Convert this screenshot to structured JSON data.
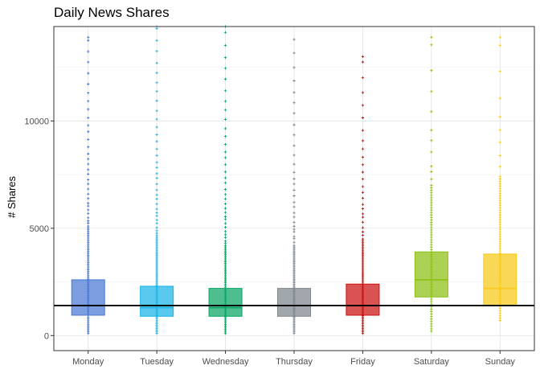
{
  "chart_data": {
    "type": "box",
    "title": "Daily News Shares",
    "xlabel": "",
    "ylabel": "# Shares",
    "ylim": [
      -700,
      14400
    ],
    "yticks": [
      0,
      5000,
      10000
    ],
    "grid": true,
    "legend": "none",
    "reference_line": {
      "y": 1400,
      "color": "#000000"
    },
    "categories": [
      "Monday",
      "Tuesday",
      "Wednesday",
      "Thursday",
      "Friday",
      "Saturday",
      "Sunday"
    ],
    "boxes": [
      {
        "name": "Monday",
        "q1": 950,
        "median": 1400,
        "q3": 2600,
        "whisker_low": 100,
        "whisker_high": 5100,
        "color": "#4a77d4",
        "outlier_max": 13900,
        "outlier_density": 1.0
      },
      {
        "name": "Tuesday",
        "q1": 900,
        "median": 1300,
        "q3": 2300,
        "whisker_low": 100,
        "whisker_high": 4500,
        "color": "#1bb4e8",
        "outlier_max": 14400,
        "outlier_density": 1.0
      },
      {
        "name": "Wednesday",
        "q1": 900,
        "median": 1300,
        "q3": 2200,
        "whisker_low": 100,
        "whisker_high": 4200,
        "color": "#0aa566",
        "outlier_max": 14400,
        "outlier_density": 1.0
      },
      {
        "name": "Thursday",
        "q1": 900,
        "median": 1400,
        "q3": 2200,
        "whisker_low": 100,
        "whisker_high": 4200,
        "color": "#7d858d",
        "outlier_max": 13800,
        "outlier_density": 0.8
      },
      {
        "name": "Friday",
        "q1": 950,
        "median": 1400,
        "q3": 2400,
        "whisker_low": 100,
        "whisker_high": 4500,
        "color": "#cc1111",
        "outlier_max": 13000,
        "outlier_density": 0.7
      },
      {
        "name": "Saturday",
        "q1": 1800,
        "median": 2600,
        "q3": 3900,
        "whisker_low": 200,
        "whisker_high": 7000,
        "color": "#8cbf14",
        "outlier_max": 13900,
        "outlier_density": 0.25
      },
      {
        "name": "Sunday",
        "q1": 1400,
        "median": 2200,
        "q3": 3800,
        "whisker_low": 700,
        "whisker_high": 7300,
        "color": "#f7c918",
        "outlier_max": 13900,
        "outlier_density": 0.25
      }
    ]
  }
}
